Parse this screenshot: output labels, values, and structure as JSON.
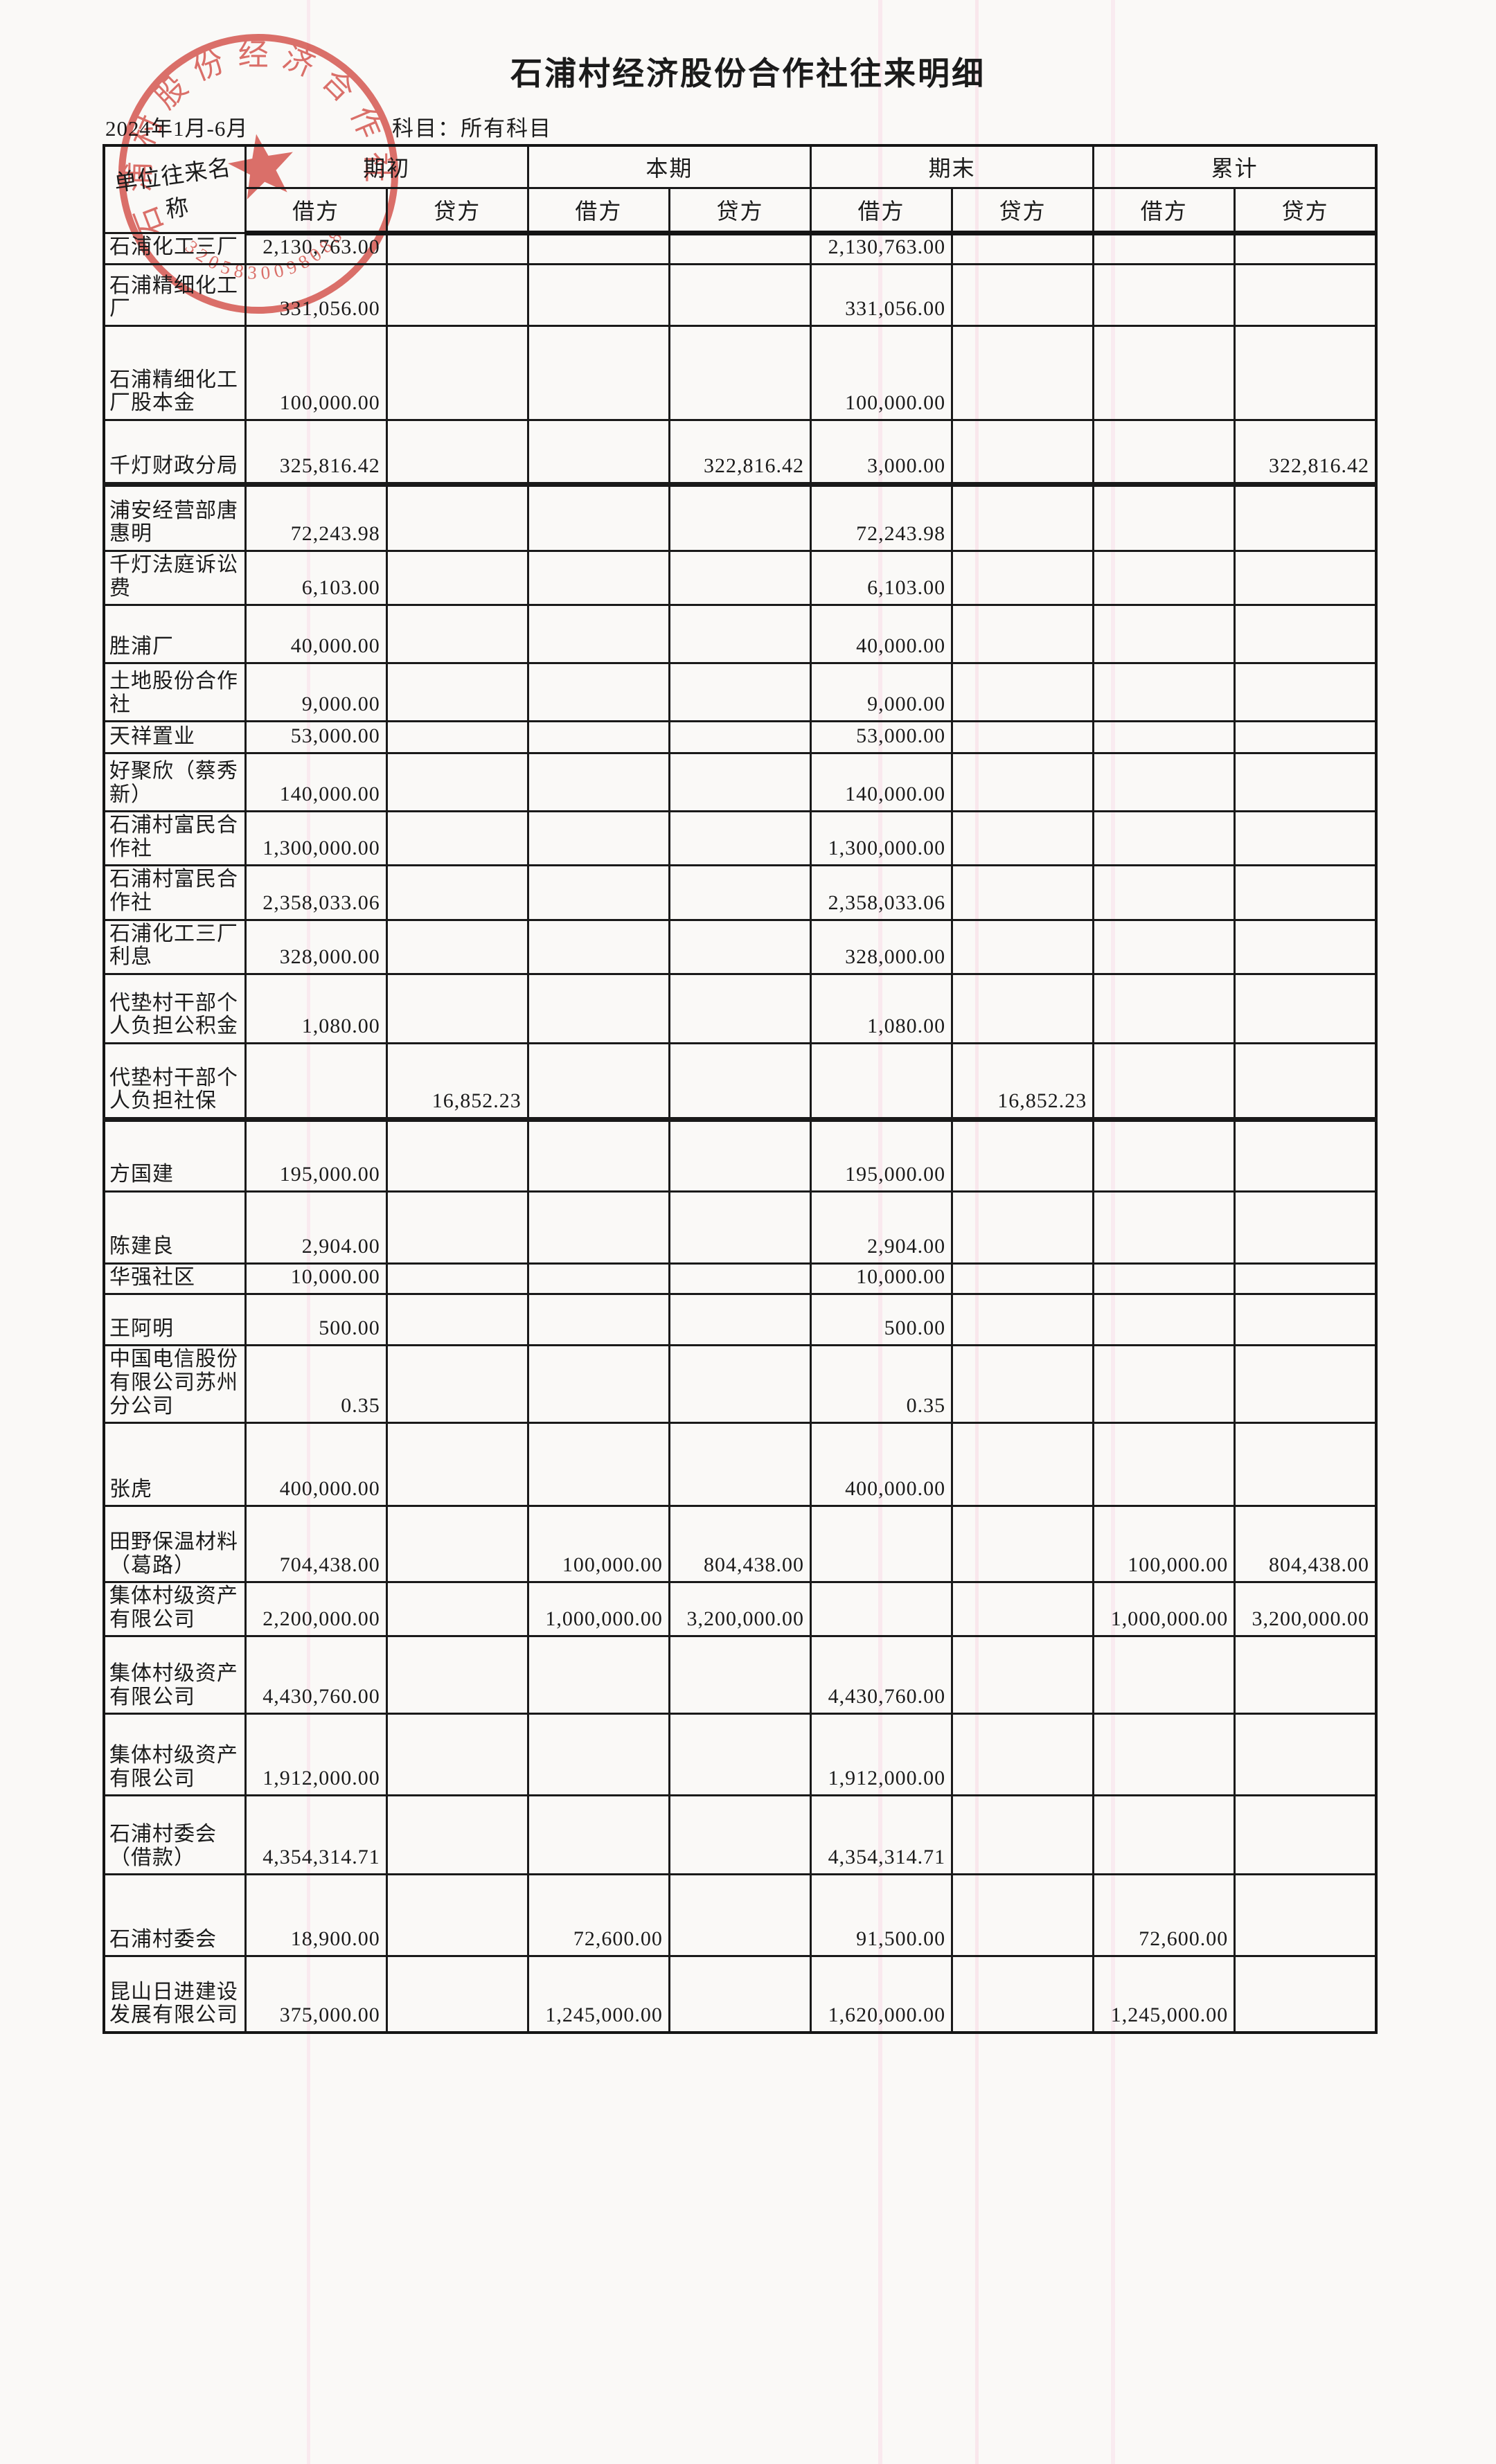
{
  "page": {
    "title": "石浦村经济股份合作社往来明细",
    "period": "2024年1月-6月",
    "subject": "科目：所有科目"
  },
  "table": {
    "corner_header": "单位往来名称",
    "group_headers": [
      "期初",
      "本期",
      "期末",
      "累计"
    ],
    "sub_headers": [
      "借方",
      "贷方"
    ],
    "rows": [
      {
        "name": "石浦化工三厂",
        "h": 40,
        "cells": [
          "2,130,763.00",
          "",
          "",
          "",
          "2,130,763.00",
          "",
          "",
          ""
        ]
      },
      {
        "name": "石浦精细化工厂",
        "h": 89,
        "cells": [
          "331,056.00",
          "",
          "",
          "",
          "331,056.00",
          "",
          "",
          ""
        ]
      },
      {
        "name": "石浦精细化工厂股本金",
        "h": 136,
        "cells": [
          "100,000.00",
          "",
          "",
          "",
          "100,000.00",
          "",
          "",
          ""
        ]
      },
      {
        "name": "千灯财政分局",
        "h": 93,
        "thick": true,
        "cells": [
          "325,816.42",
          "",
          "",
          "322,816.42",
          "3,000.00",
          "",
          "",
          "322,816.42"
        ]
      },
      {
        "name": "浦安经营部唐惠明",
        "h": 96,
        "cells": [
          "72,243.98",
          "",
          "",
          "",
          "72,243.98",
          "",
          "",
          ""
        ]
      },
      {
        "name": "千灯法庭诉讼费",
        "h": 70,
        "cells": [
          "6,103.00",
          "",
          "",
          "",
          "6,103.00",
          "",
          "",
          ""
        ]
      },
      {
        "name": "胜浦厂",
        "h": 84,
        "cells": [
          "40,000.00",
          "",
          "",
          "",
          "40,000.00",
          "",
          "",
          ""
        ]
      },
      {
        "name": "土地股份合作社",
        "h": 84,
        "cells": [
          "9,000.00",
          "",
          "",
          "",
          "9,000.00",
          "",
          "",
          ""
        ]
      },
      {
        "name": "天祥置业",
        "h": 46,
        "cells": [
          "53,000.00",
          "",
          "",
          "",
          "53,000.00",
          "",
          "",
          ""
        ]
      },
      {
        "name": "好聚欣（蔡秀新）",
        "h": 84,
        "cells": [
          "140,000.00",
          "",
          "",
          "",
          "140,000.00",
          "",
          "",
          ""
        ]
      },
      {
        "name": "石浦村富民合作社",
        "h": 70,
        "cells": [
          "1,300,000.00",
          "",
          "",
          "",
          "1,300,000.00",
          "",
          "",
          ""
        ]
      },
      {
        "name": "石浦村富民合作社",
        "h": 64,
        "cells": [
          "2,358,033.06",
          "",
          "",
          "",
          "2,358,033.06",
          "",
          "",
          ""
        ]
      },
      {
        "name": "石浦化工三厂利息",
        "h": 74,
        "cells": [
          "328,000.00",
          "",
          "",
          "",
          "328,000.00",
          "",
          "",
          ""
        ]
      },
      {
        "name": "代垫村干部个人负担公积金",
        "h": 100,
        "cells": [
          "1,080.00",
          "",
          "",
          "",
          "1,080.00",
          "",
          "",
          ""
        ]
      },
      {
        "name": "代垫村干部个人负担社保",
        "h": 110,
        "thick": true,
        "cells": [
          "",
          "16,852.23",
          "",
          "",
          "",
          "16,852.23",
          "",
          ""
        ]
      },
      {
        "name": "方国建",
        "h": 104,
        "cells": [
          "195,000.00",
          "",
          "",
          "",
          "195,000.00",
          "",
          "",
          ""
        ]
      },
      {
        "name": "陈建良",
        "h": 104,
        "cells": [
          "2,904.00",
          "",
          "",
          "",
          "2,904.00",
          "",
          "",
          ""
        ]
      },
      {
        "name": "华强社区",
        "h": 42,
        "cells": [
          "10,000.00",
          "",
          "",
          "",
          "10,000.00",
          "",
          "",
          ""
        ]
      },
      {
        "name": "王阿明",
        "h": 74,
        "cells": [
          "500.00",
          "",
          "",
          "",
          "500.00",
          "",
          "",
          ""
        ]
      },
      {
        "name": "中国电信股份有限公司苏州分公司",
        "h": 108,
        "cells": [
          "0.35",
          "",
          "",
          "",
          "0.35",
          "",
          "",
          ""
        ]
      },
      {
        "name": "张虎",
        "h": 120,
        "cells": [
          "400,000.00",
          "",
          "",
          "",
          "400,000.00",
          "",
          "",
          ""
        ]
      },
      {
        "name": "田野保温材料（葛路）",
        "h": 110,
        "cells": [
          "704,438.00",
          "",
          "100,000.00",
          "804,438.00",
          "",
          "",
          "100,000.00",
          "804,438.00"
        ]
      },
      {
        "name": "集体村级资产有限公司",
        "h": 78,
        "cells": [
          "2,200,000.00",
          "",
          "1,000,000.00",
          "3,200,000.00",
          "",
          "",
          "1,000,000.00",
          "3,200,000.00"
        ]
      },
      {
        "name": "集体村级资产有限公司",
        "h": 112,
        "cells": [
          "4,430,760.00",
          "",
          "",
          "",
          "4,430,760.00",
          "",
          "",
          ""
        ]
      },
      {
        "name": "集体村级资产有限公司",
        "h": 118,
        "cells": [
          "1,912,000.00",
          "",
          "",
          "",
          "1,912,000.00",
          "",
          "",
          ""
        ]
      },
      {
        "name": "石浦村委会\n（借款）",
        "h": 114,
        "cells": [
          "4,354,314.71",
          "",
          "",
          "",
          "4,354,314.71",
          "",
          "",
          ""
        ]
      },
      {
        "name": "石浦村委会",
        "h": 118,
        "cells": [
          "18,900.00",
          "",
          "72,600.00",
          "",
          "91,500.00",
          "",
          "72,600.00",
          ""
        ]
      },
      {
        "name": "昆山日进建设发展有限公司",
        "h": 110,
        "cells": [
          "375,000.00",
          "",
          "1,245,000.00",
          "",
          "1,620,000.00",
          "",
          "1,245,000.00",
          ""
        ]
      }
    ]
  },
  "stamp": {
    "ring_text": "石浦村股份经济合作社",
    "serial": "3205830098088",
    "color": "#d5463f"
  },
  "colors": {
    "ink": "#1b1b1b",
    "paper": "#faf9f7",
    "stamp_red": "#d5463f"
  }
}
